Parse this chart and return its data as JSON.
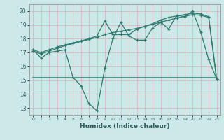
{
  "title": "",
  "xlabel": "Humidex (Indice chaleur)",
  "bg_color": "#cce8e8",
  "line_color": "#2d7a6e",
  "xlim": [
    -0.5,
    23.5
  ],
  "ylim": [
    12.5,
    20.5
  ],
  "yticks": [
    13,
    14,
    15,
    16,
    17,
    18,
    19,
    20
  ],
  "xticks": [
    0,
    1,
    2,
    3,
    4,
    5,
    6,
    7,
    8,
    9,
    10,
    11,
    12,
    13,
    14,
    15,
    16,
    17,
    18,
    19,
    20,
    21,
    22,
    23
  ],
  "line1_x": [
    0,
    1,
    2,
    3,
    4,
    5,
    6,
    7,
    8,
    9,
    10,
    11,
    12,
    13,
    14,
    15,
    16,
    17,
    18,
    19,
    20,
    21,
    22,
    23
  ],
  "line1_y": [
    17.2,
    16.6,
    17.0,
    17.1,
    17.2,
    15.2,
    14.6,
    13.3,
    12.8,
    15.9,
    18.0,
    19.2,
    18.2,
    17.9,
    17.9,
    18.8,
    19.2,
    18.7,
    19.7,
    19.6,
    20.0,
    18.5,
    16.5,
    15.1
  ],
  "line2_x": [
    0,
    1,
    2,
    3,
    4,
    5,
    6,
    7,
    8,
    9,
    10,
    11,
    12,
    13,
    14,
    15,
    16,
    17,
    18,
    19,
    20,
    21,
    22,
    23
  ],
  "line2_y": [
    17.1,
    16.9,
    17.1,
    17.3,
    17.5,
    17.65,
    17.8,
    17.95,
    18.1,
    18.3,
    18.45,
    18.55,
    18.65,
    18.75,
    18.9,
    19.05,
    19.2,
    19.35,
    19.5,
    19.62,
    19.75,
    19.7,
    19.55,
    15.1
  ],
  "line3_x": [
    0,
    23
  ],
  "line3_y": [
    15.2,
    15.2
  ],
  "line4_x": [
    0,
    1,
    2,
    3,
    4,
    5,
    6,
    7,
    8,
    9,
    10,
    11,
    12,
    13,
    14,
    15,
    16,
    17,
    18,
    19,
    20,
    21,
    22,
    23
  ],
  "line4_y": [
    17.2,
    17.0,
    17.2,
    17.4,
    17.55,
    17.7,
    17.85,
    18.0,
    18.2,
    19.3,
    18.3,
    18.3,
    18.3,
    18.7,
    18.9,
    19.1,
    19.35,
    19.55,
    19.65,
    19.75,
    19.85,
    19.8,
    19.6,
    15.1
  ]
}
